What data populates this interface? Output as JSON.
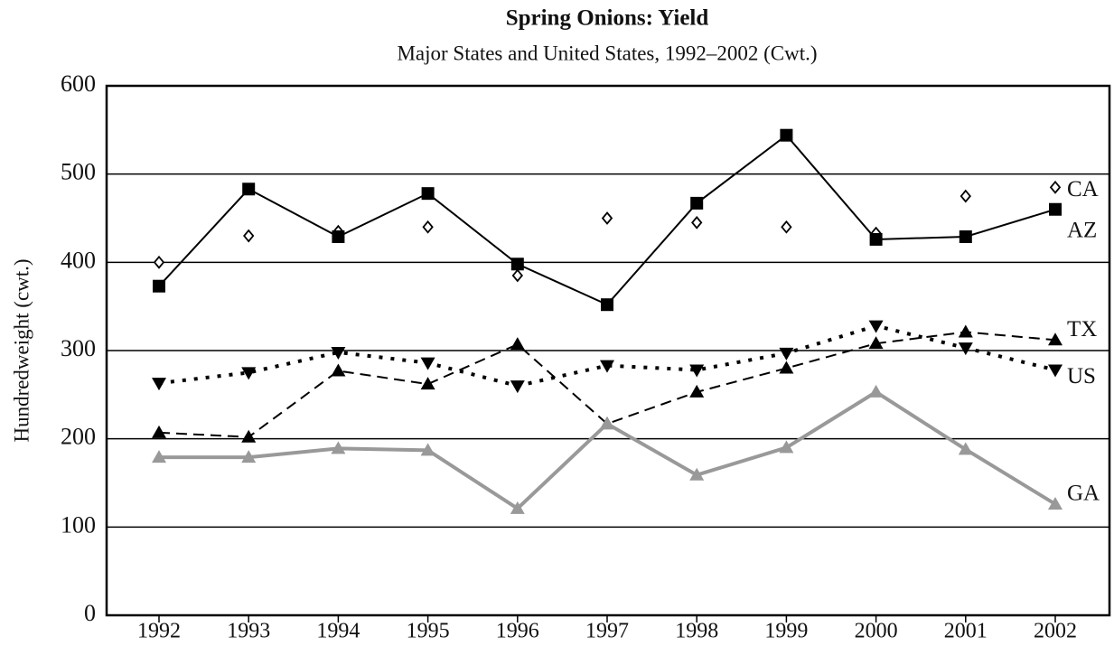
{
  "chart_data": {
    "type": "line",
    "title": "Spring Onions: Yield",
    "subtitle": "Major States and United States, 1992–2002 (Cwt.)",
    "ylabel": "Hundredweight (cwt.)",
    "categories": [
      "1992",
      "1993",
      "1994",
      "1995",
      "1996",
      "1997",
      "1998",
      "1999",
      "2000",
      "2001",
      "2002"
    ],
    "ylim": [
      0,
      600
    ],
    "yticks": [
      0,
      100,
      200,
      300,
      400,
      500,
      600
    ],
    "grid": true,
    "series": [
      {
        "name": "CA",
        "color": "#000000",
        "marker": "diamond",
        "line": "none",
        "values": [
          400,
          430,
          435,
          440,
          385,
          450,
          445,
          440,
          433,
          475,
          485
        ]
      },
      {
        "name": "AZ",
        "color": "#000000",
        "marker": "square",
        "line": "solid",
        "values": [
          373,
          483,
          429,
          478,
          398,
          352,
          467,
          544,
          426,
          429,
          460
        ]
      },
      {
        "name": "TX",
        "color": "#000000",
        "marker": "triangle-up",
        "line": "dashed",
        "values": [
          207,
          202,
          277,
          262,
          307,
          217,
          253,
          280,
          308,
          321,
          312
        ]
      },
      {
        "name": "US",
        "color": "#000000",
        "marker": "triangle-down",
        "line": "dotted",
        "values": [
          263,
          275,
          298,
          286,
          260,
          283,
          278,
          297,
          328,
          303,
          278
        ]
      },
      {
        "name": "GA",
        "color": "#999999",
        "marker": "triangle-up",
        "line": "thick",
        "values": [
          179,
          179,
          189,
          187,
          121,
          217,
          159,
          190,
          253,
          188,
          126
        ]
      }
    ]
  }
}
